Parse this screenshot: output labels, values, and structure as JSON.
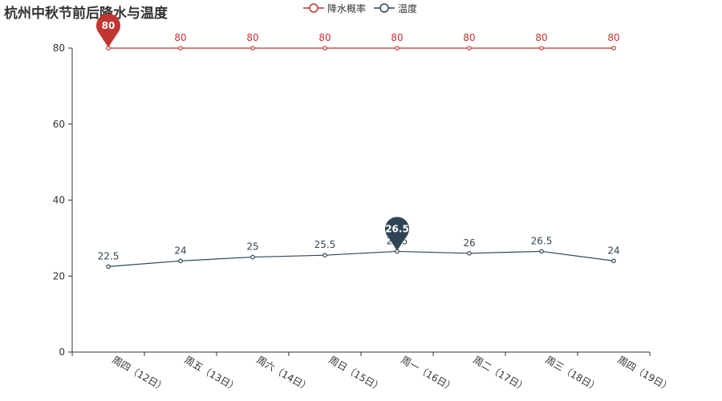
{
  "chart_data": {
    "type": "line",
    "title": "杭州中秋节前后降水与温度",
    "categories": [
      "周四（12日）",
      "周五（13日）",
      "周六（14日）",
      "周日（15日）",
      "周一（16日）",
      "周二（17日）",
      "周三（18日）",
      "周四（19日）"
    ],
    "ylim": [
      0,
      80
    ],
    "yticks": [
      0,
      20,
      40,
      60,
      80
    ],
    "grid": false,
    "legend_position": "top-center",
    "series": [
      {
        "name": "降水概率",
        "color": "#c23531",
        "values": [
          80,
          80,
          80,
          80,
          80,
          80,
          80,
          80
        ],
        "max_marker": {
          "value": 80,
          "index": 0
        }
      },
      {
        "name": "温度",
        "color": "#2f4554",
        "values": [
          22.5,
          24,
          25,
          25.5,
          26.5,
          26,
          26.5,
          24
        ],
        "max_marker": {
          "value": 26.5,
          "index": 4
        }
      }
    ]
  }
}
